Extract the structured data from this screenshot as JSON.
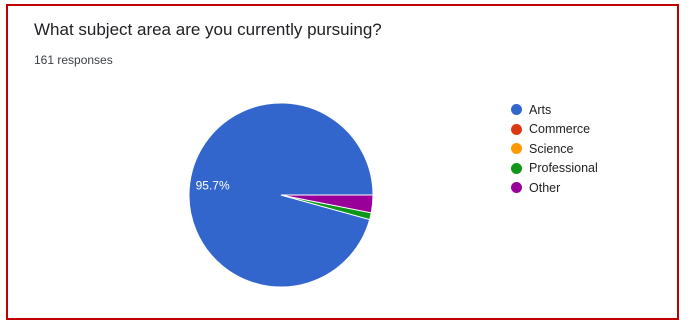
{
  "header": {
    "title": "What subject area are you currently pursuing?",
    "responses": "161 responses"
  },
  "chart_data": {
    "type": "pie",
    "title": "What subject area are you currently pursuing?",
    "total_responses": 161,
    "categories": [
      "Arts",
      "Commerce",
      "Science",
      "Professional",
      "Other"
    ],
    "values": [
      95.7,
      0,
      0,
      1.2,
      3.1
    ],
    "value_unit": "%",
    "data_labels": [
      "95.7%",
      "",
      "",
      "",
      ""
    ],
    "colors": [
      "#3366cc",
      "#dc3912",
      "#ff9900",
      "#109618",
      "#990099"
    ],
    "legend_position": "right"
  }
}
